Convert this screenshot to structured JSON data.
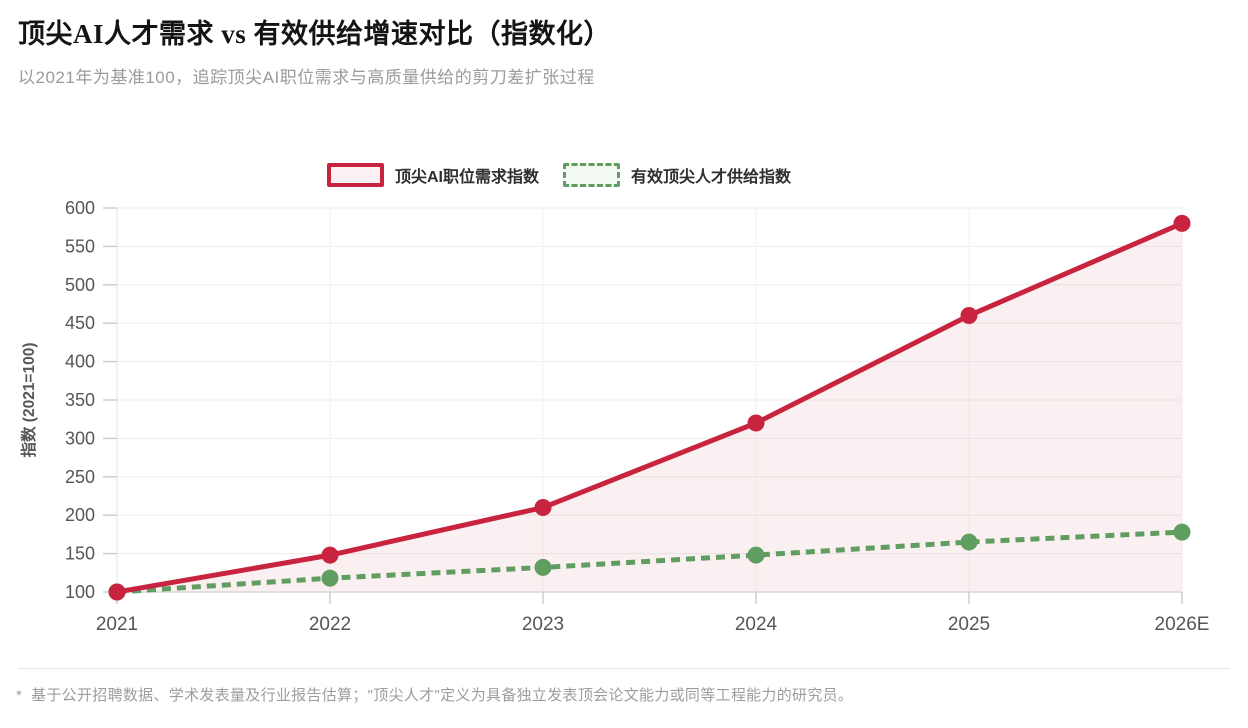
{
  "page": {
    "title": "顶尖AI人才需求 vs 有效供给增速对比（指数化）",
    "subtitle": "以2021年为基准100，追踪顶尖AI职位需求与高质量供给的剪刀差扩张过程",
    "footnote": "*  基于公开招聘数据、学术发表量及行业报告估算；\"顶尖人才\"定义为具备独立发表顶会论文能力或同等工程能力的研究员。"
  },
  "colors": {
    "demand_red": "#C9243F",
    "demand_area_fill": "rgba(201,36,63,0.07)",
    "supply_green": "#5F9E60",
    "legend_red_fill": "#FBF1F2",
    "legend_green_fill": "#F3F8F3",
    "gridline": "#ededed",
    "axis_line": "#d7d7d7",
    "tick_mark": "#cdcdcd",
    "tick_label": "#53565b"
  },
  "chart_data": {
    "type": "line",
    "x": [
      "2021",
      "2022",
      "2023",
      "2024",
      "2025",
      "2026E"
    ],
    "series": [
      {
        "name": "顶尖AI职位需求指数",
        "values": [
          100,
          148,
          210,
          320,
          460,
          580
        ],
        "color": "#C9243F",
        "line_style": "solid",
        "area": true
      },
      {
        "name": "有效顶尖人才供给指数",
        "values": [
          100,
          118,
          132,
          148,
          165,
          178
        ],
        "color": "#5F9E60",
        "line_style": "dashed",
        "area": false
      }
    ],
    "title": "顶尖AI人才需求 vs 有效供给增速对比（指数化）",
    "xlabel": "",
    "ylabel": "指数 (2021=100)",
    "ylim": [
      100,
      600
    ],
    "ytick_step": 50,
    "grid": true,
    "legend_position": "top-center",
    "baseline_value": 100
  }
}
